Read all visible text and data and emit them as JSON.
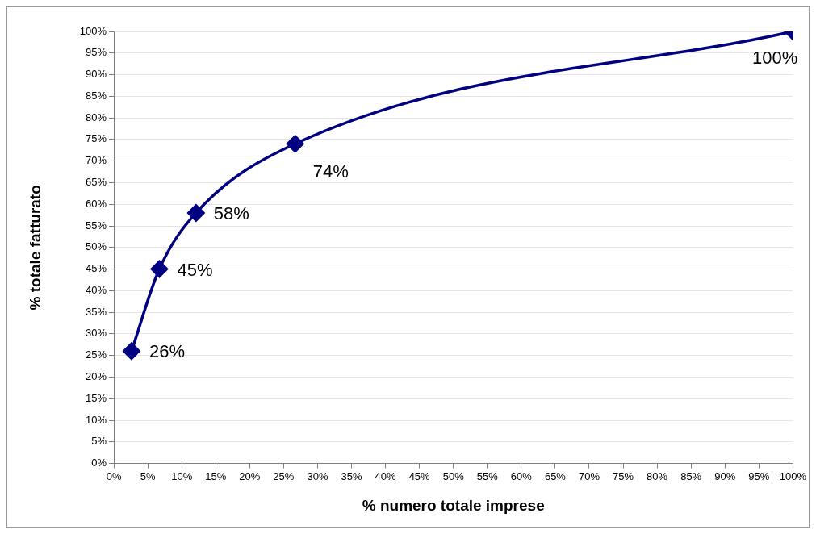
{
  "chart_data": {
    "type": "line",
    "xlabel": "% numero totale imprese",
    "ylabel": "% totale fatturato",
    "x": [
      2.6,
      6.7,
      12.1,
      26.7,
      100
    ],
    "series": [
      {
        "color": "#000080",
        "values": [
          26,
          45,
          58,
          74,
          100
        ],
        "value_labels": [
          "26%",
          "45%",
          "58%",
          "74%",
          "100%"
        ]
      }
    ],
    "marker": "diamond",
    "line_style": "solid",
    "grid": "y",
    "legend": false,
    "xlim": [
      0,
      100
    ],
    "ylim": [
      0,
      100
    ],
    "xticks": [
      {
        "value": 0,
        "label": "0%"
      },
      {
        "value": 5,
        "label": "5%"
      },
      {
        "value": 10,
        "label": "10%"
      },
      {
        "value": 15,
        "label": "15%"
      },
      {
        "value": 20,
        "label": "20%"
      },
      {
        "value": 25,
        "label": "25%"
      },
      {
        "value": 30,
        "label": "30%"
      },
      {
        "value": 35,
        "label": "35%"
      },
      {
        "value": 40,
        "label": "40%"
      },
      {
        "value": 45,
        "label": "45%"
      },
      {
        "value": 50,
        "label": "50%"
      },
      {
        "value": 55,
        "label": "55%"
      },
      {
        "value": 60,
        "label": "60%"
      },
      {
        "value": 65,
        "label": "65%"
      },
      {
        "value": 70,
        "label": "70%"
      },
      {
        "value": 75,
        "label": "75%"
      },
      {
        "value": 80,
        "label": "80%"
      },
      {
        "value": 85,
        "label": "85%"
      },
      {
        "value": 90,
        "label": "90%"
      },
      {
        "value": 95,
        "label": "95%"
      },
      {
        "value": 100,
        "label": "100%"
      }
    ],
    "yticks": [
      {
        "value": 0,
        "label": "0%"
      },
      {
        "value": 5,
        "label": "5%"
      },
      {
        "value": 10,
        "label": "10%"
      },
      {
        "value": 15,
        "label": "15%"
      },
      {
        "value": 20,
        "label": "20%"
      },
      {
        "value": 25,
        "label": "25%"
      },
      {
        "value": 30,
        "label": "30%"
      },
      {
        "value": 35,
        "label": "35%"
      },
      {
        "value": 40,
        "label": "40%"
      },
      {
        "value": 45,
        "label": "45%"
      },
      {
        "value": 50,
        "label": "50%"
      },
      {
        "value": 55,
        "label": "55%"
      },
      {
        "value": 60,
        "label": "60%"
      },
      {
        "value": 65,
        "label": "65%"
      },
      {
        "value": 70,
        "label": "70%"
      },
      {
        "value": 75,
        "label": "75%"
      },
      {
        "value": 80,
        "label": "80%"
      },
      {
        "value": 85,
        "label": "85%"
      },
      {
        "value": 90,
        "label": "90%"
      },
      {
        "value": 95,
        "label": "95%"
      },
      {
        "value": 100,
        "label": "100%"
      }
    ]
  }
}
